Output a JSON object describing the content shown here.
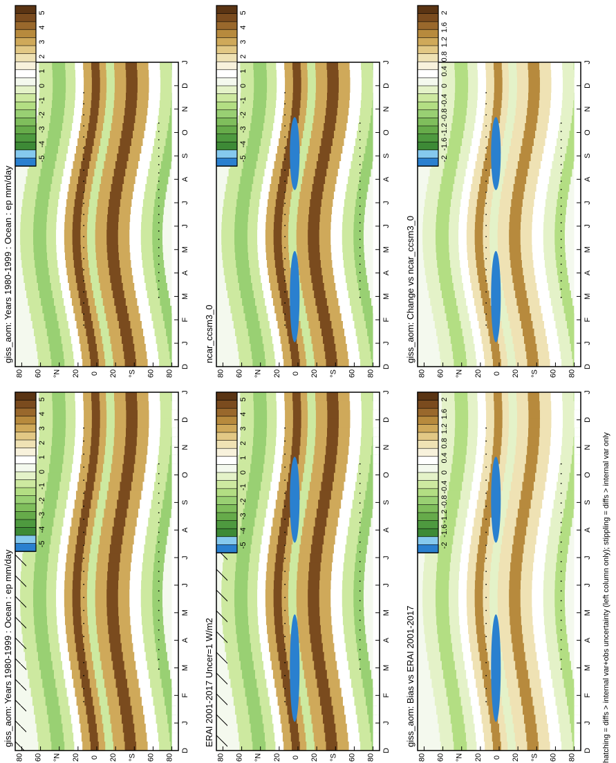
{
  "footnote": "hatching = diffs > internal var+obs uncertainty (left column only); stippling = diffs > internal var only",
  "chart_data": {
    "type": "heatmap",
    "rotation": "figure rotated 90 degrees clockwise",
    "month_ticks": [
      "D",
      "J",
      "F",
      "M",
      "A",
      "M",
      "J",
      "J",
      "A",
      "S",
      "O",
      "N",
      "D",
      "J"
    ],
    "lat_ticks": [
      "80",
      "60",
      "°N",
      "20",
      "0",
      "20",
      "°S",
      "60",
      "80"
    ],
    "colorbars": [
      {
        "labels": [
          "5",
          "4",
          "3",
          "2",
          "1",
          "0",
          "-1",
          "-2",
          "-3",
          "-4",
          "-5"
        ],
        "colors": [
          "#5a3413",
          "#7a4b1e",
          "#99682c",
          "#b78a3d",
          "#cfa95a",
          "#e2c885",
          "#efe2b4",
          "#f8f2dc",
          "#ffffff",
          "#f4f9ee",
          "#e4f2c8",
          "#cde9a0",
          "#b3de83",
          "#99d073",
          "#7fbe5c",
          "#66ab4a",
          "#4e9a3f",
          "#3d8a36",
          "#85c9ee",
          "#2a80cf"
        ]
      },
      {
        "labels": [
          "2",
          "1.6",
          "1.2",
          "0.8",
          "0.4",
          "0",
          "-0.4",
          "-0.8",
          "-1.2",
          "-1.6",
          "-2"
        ],
        "colors": [
          "#5a3413",
          "#7a4b1e",
          "#99682c",
          "#b78a3d",
          "#cfa95a",
          "#e2c885",
          "#efe2b4",
          "#f8f2dc",
          "#ffffff",
          "#f4f9ee",
          "#e4f2c8",
          "#cde9a0",
          "#b3de83",
          "#99d073",
          "#7fbe5c",
          "#66ab4a",
          "#4e9a3f",
          "#3d8a36",
          "#85c9ee",
          "#2a80cf"
        ]
      }
    ],
    "panels": [
      {
        "title": "giss_aom: Years 1980-1999 : Ocean : ep mm/day",
        "colorbar": 0,
        "hatching": true
      },
      {
        "title": "giss_aom: Years 1980-1999 : Ocean : ep mm/day",
        "colorbar": 0,
        "hatching": false
      },
      {
        "title": "ERAI 2001-2017 Uncer=1 W/m2",
        "colorbar": 0,
        "hatching": true
      },
      {
        "title": "ncar_ccsm3_0",
        "colorbar": 0,
        "hatching": false
      },
      {
        "title": "giss_aom: Bias vs ERAI 2001-2017",
        "colorbar": 1,
        "hatching": false
      },
      {
        "title": "giss_aom: Change vs ncar_ccsm3_0",
        "colorbar": 1,
        "hatching": false
      }
    ]
  }
}
